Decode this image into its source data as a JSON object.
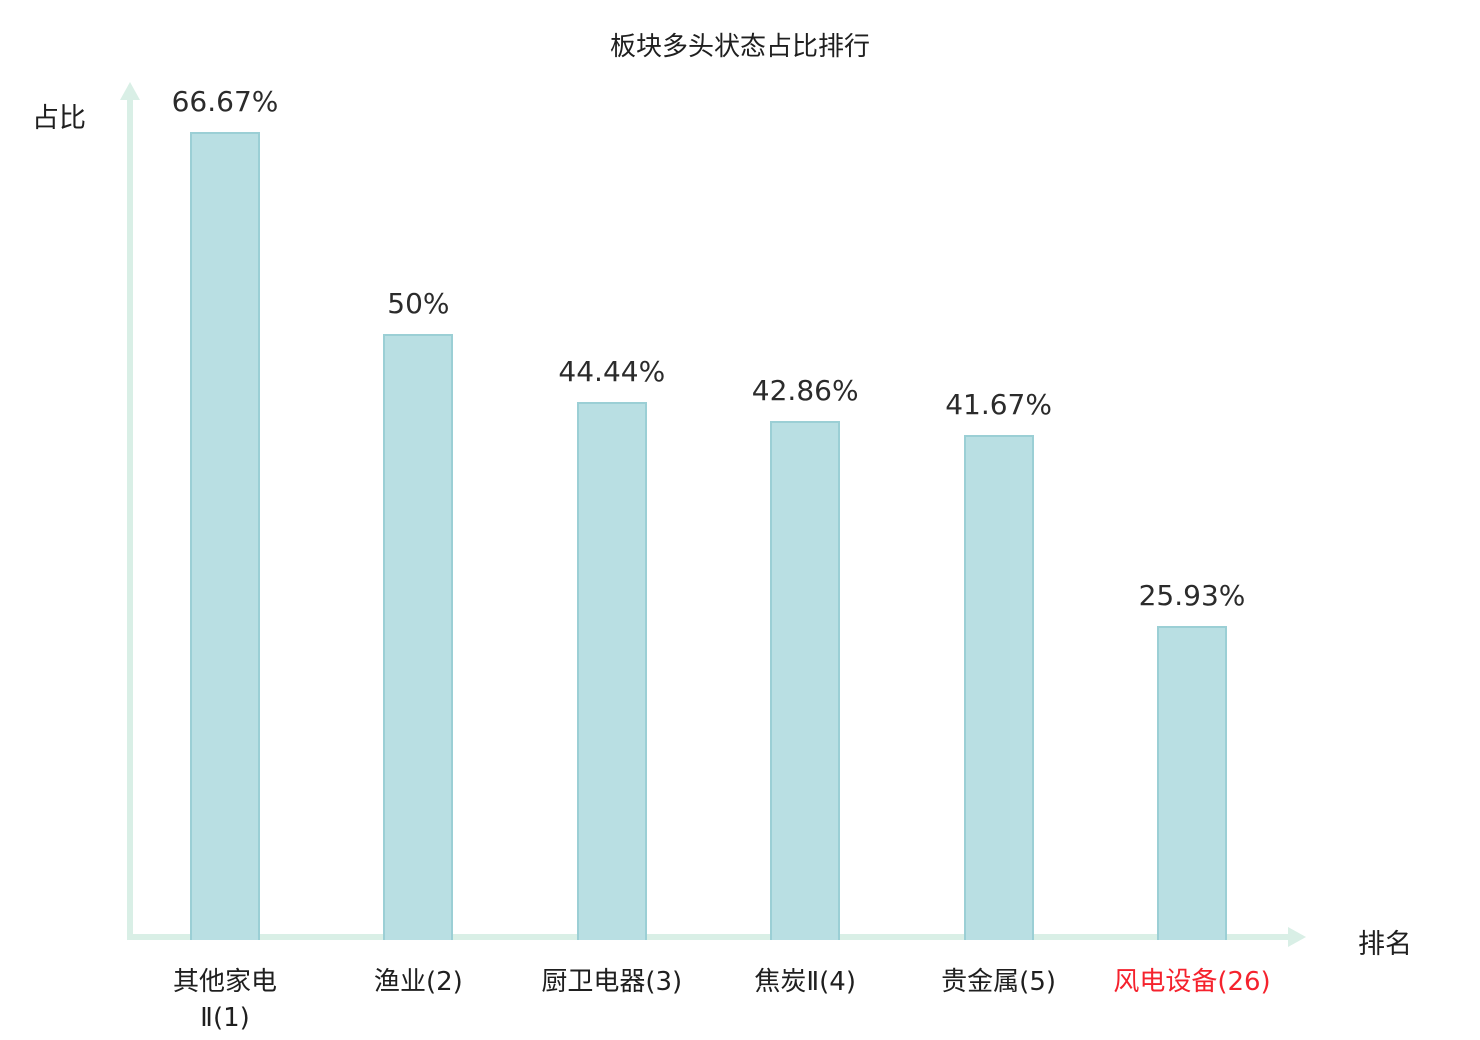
{
  "title": "板块多头状态占比排行",
  "axes": {
    "y_label": "占比",
    "x_label": "排名"
  },
  "colors": {
    "bar_fill": "#b9dfe3",
    "bar_border": "#9bcfd5",
    "axis": "#d9efe6",
    "text": "#1f1f1f",
    "highlight": "#f5222d"
  },
  "chart_data": {
    "type": "bar",
    "title": "板块多头状态占比排行",
    "xlabel": "排名",
    "ylabel": "占比",
    "categories": [
      "其他家电\nⅡ(1)",
      "渔业(2)",
      "厨卫电器(3)",
      "焦炭Ⅱ(4)",
      "贵金属(5)",
      "风电设备(26)"
    ],
    "values": [
      66.67,
      50,
      44.44,
      42.86,
      41.67,
      25.93
    ],
    "value_labels": [
      "66.67%",
      "50%",
      "44.44%",
      "42.86%",
      "41.67%",
      "25.93%"
    ],
    "highlight_index": 5,
    "ylim": [
      0,
      70
    ],
    "grid": false,
    "legend": "none"
  }
}
